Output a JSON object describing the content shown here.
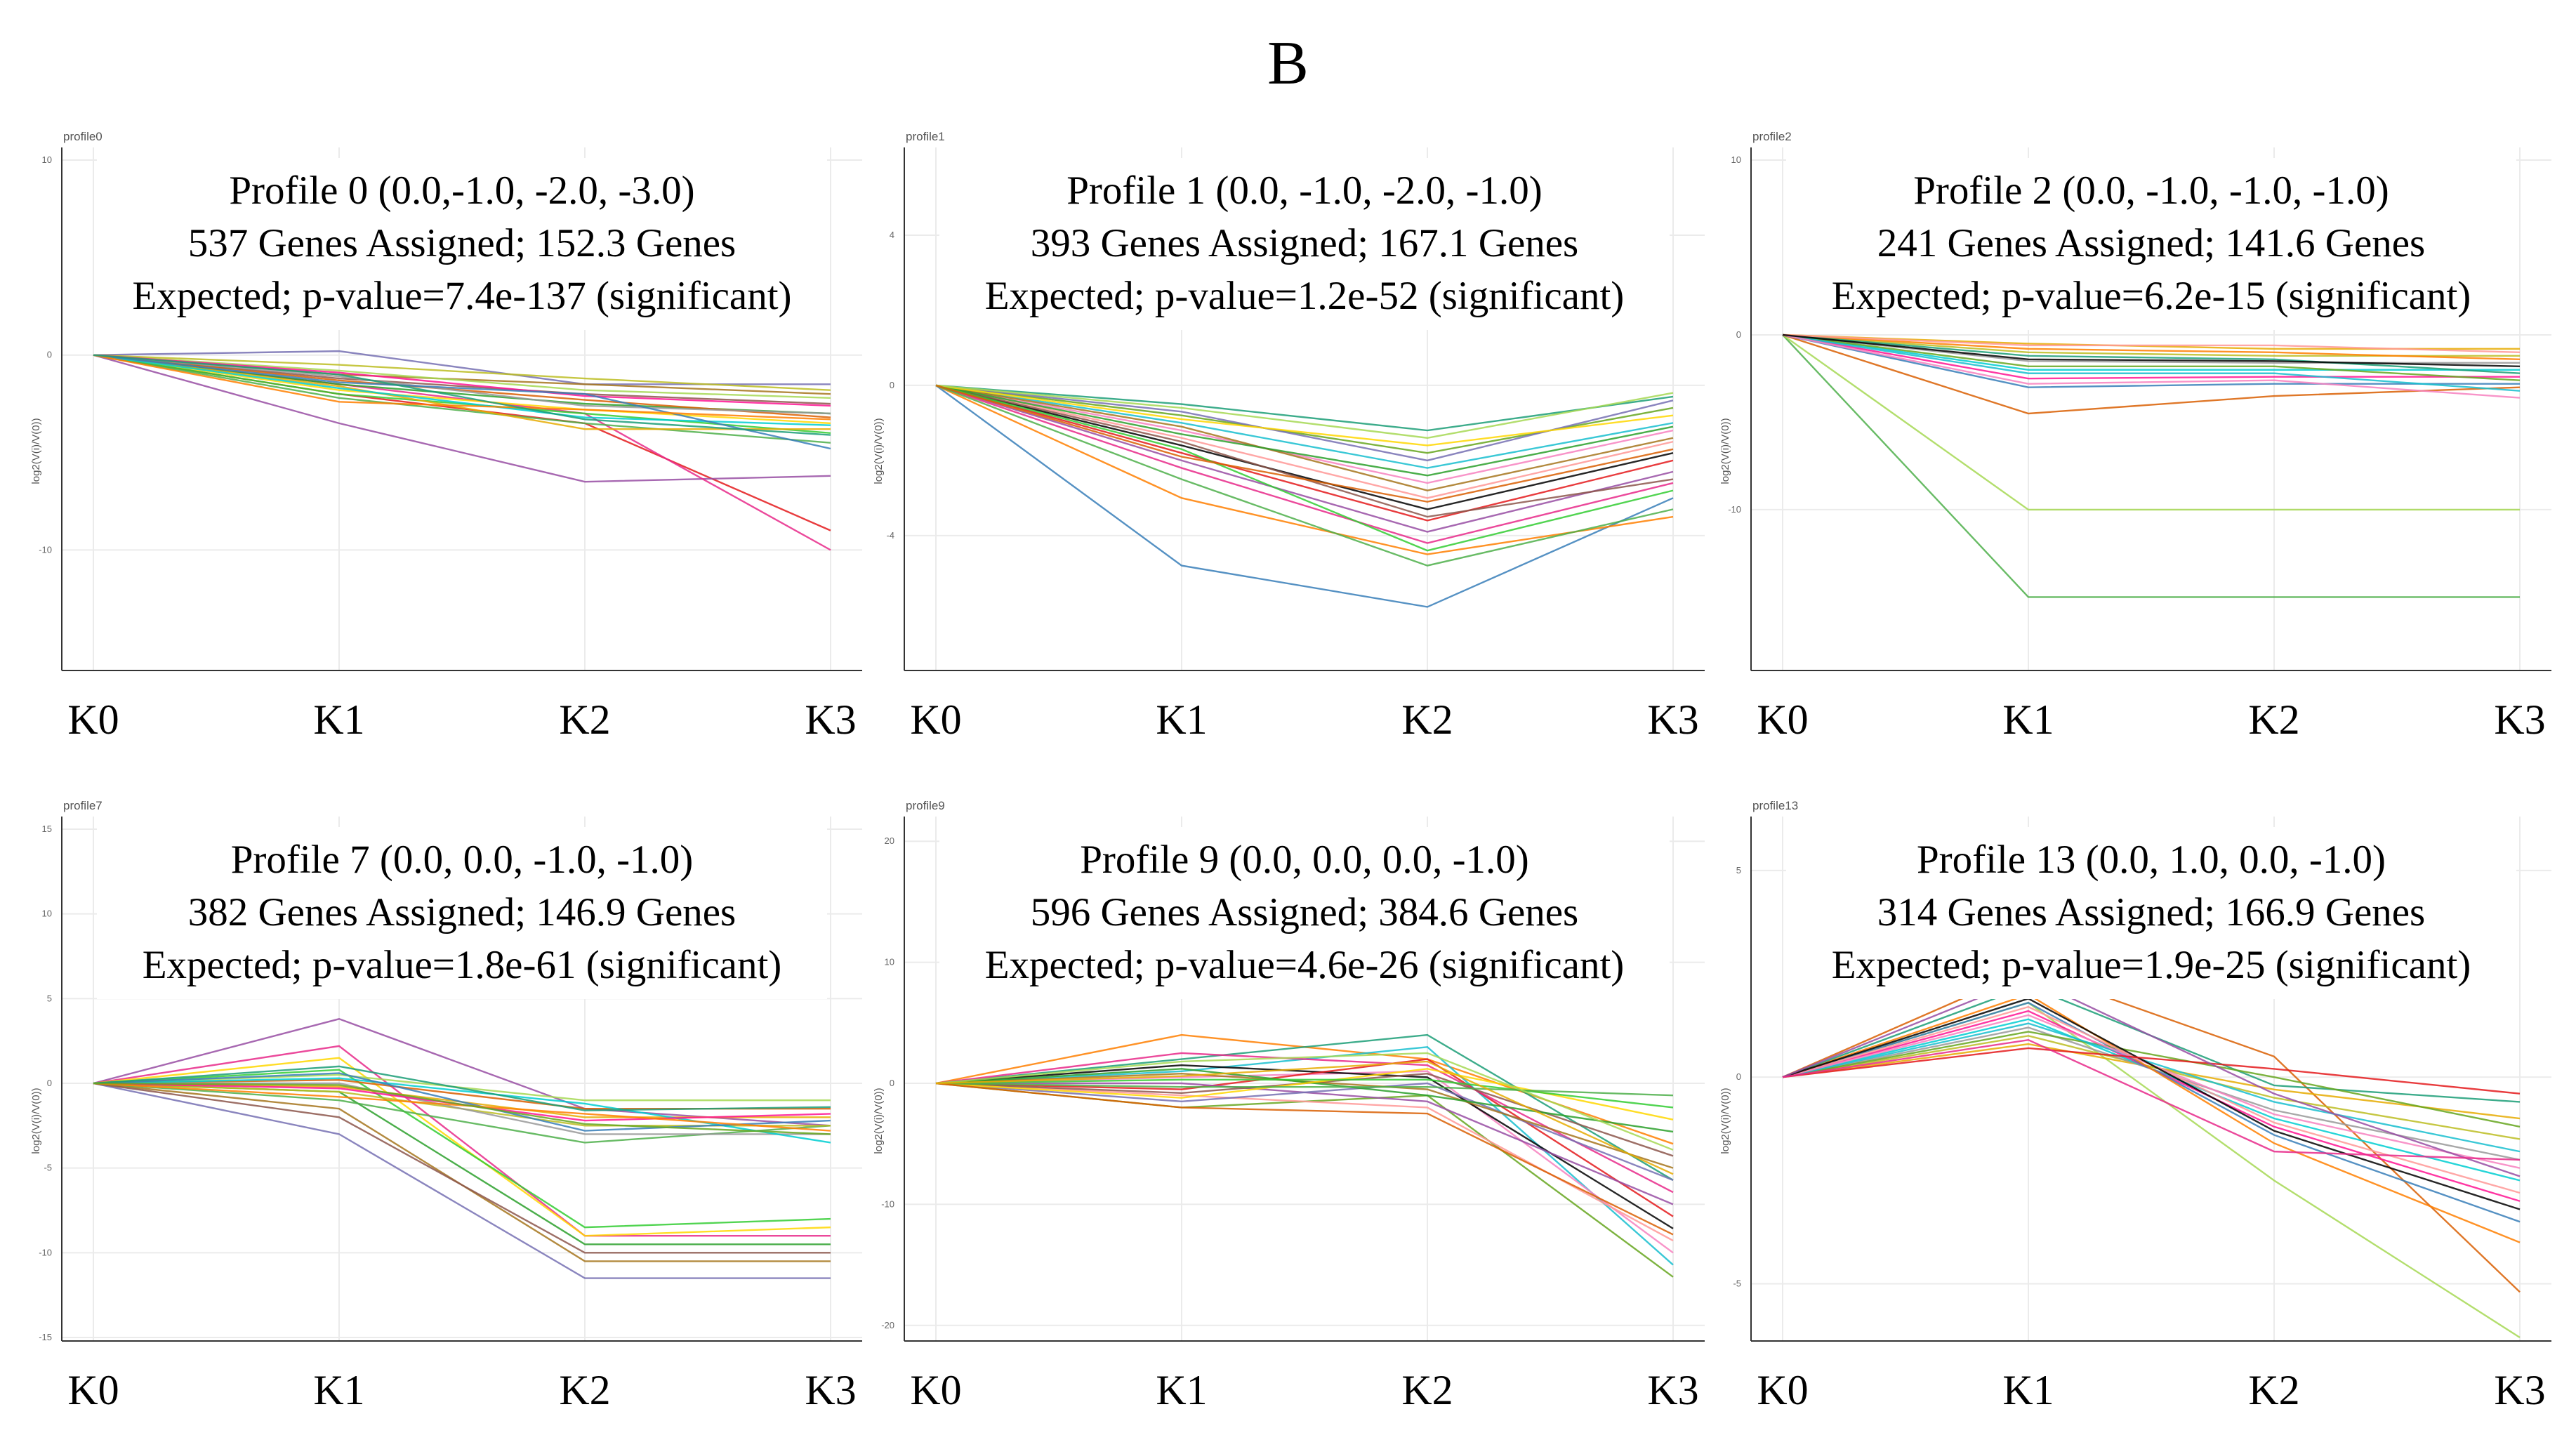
{
  "figure_label": "B",
  "colors": {
    "palette": [
      "#e41a1c",
      "#377eb8",
      "#4daf4a",
      "#984ea3",
      "#ff7f00",
      "#a6d854",
      "#e7298a",
      "#1b9e77",
      "#d95f02",
      "#7570b3",
      "#66a61e",
      "#e6ab02",
      "#a6761d",
      "#17becf",
      "#bcbd22",
      "#8c564b",
      "#f781bf",
      "#999999",
      "#2ca02c",
      "#ff9896",
      "#00ced1",
      "#ffd700",
      "#000000",
      "#ff1493",
      "#32cd32"
    ],
    "gridline": "#ebebeb",
    "axis": "#333333"
  },
  "chart_data": [
    {
      "type": "line",
      "tag": "profile0",
      "caption": [
        "Profile 0 (0.0,-1.0, -2.0, -3.0)",
        "537 Genes Assigned; 152.3 Genes",
        "Expected; p-value=7.4e-137 (significant)"
      ],
      "ylabel": "log2(V(i)/V(0))",
      "categories": [
        "K0",
        "K1",
        "K2",
        "K3"
      ],
      "profile": [
        0,
        -1,
        -2,
        -3
      ],
      "ylim": [
        -16,
        10
      ],
      "yticks": [
        10,
        0,
        -10
      ],
      "series": [
        {
          "values": [
            0,
            -2.0,
            -3.5,
            -9.0
          ]
        },
        {
          "values": [
            0,
            -3.5,
            -6.5,
            -6.2
          ]
        },
        {
          "values": [
            0,
            -1.5,
            -3.0,
            -10.0
          ]
        },
        {
          "values": [
            0,
            0.2,
            -1.5,
            -1.5
          ]
        },
        {
          "values": [
            0,
            -1.0,
            -1.5,
            -2.0
          ]
        },
        {
          "values": [
            0,
            -1.2,
            -2.0,
            -2.5
          ]
        },
        {
          "values": [
            0,
            -1.5,
            -2.5,
            -3.0
          ]
        },
        {
          "values": [
            0,
            -1.8,
            -2.8,
            -3.5
          ]
        },
        {
          "values": [
            0,
            -2.0,
            -3.0,
            -4.0
          ]
        },
        {
          "values": [
            0,
            -2.2,
            -3.5,
            -4.5
          ]
        },
        {
          "values": [
            0,
            -0.8,
            -1.8,
            -2.2
          ]
        },
        {
          "values": [
            0,
            -1.3,
            -2.3,
            -3.2
          ]
        },
        {
          "values": [
            0,
            -1.6,
            -3.8,
            -3.8
          ]
        },
        {
          "values": [
            0,
            -0.5,
            -1.2,
            -1.8
          ]
        },
        {
          "values": [
            0,
            -1.1,
            -2.6,
            -3.0
          ]
        },
        {
          "values": [
            0,
            -1.7,
            -3.2,
            -3.6
          ]
        },
        {
          "values": [
            0,
            -0.9,
            -2.1,
            -2.6
          ]
        },
        {
          "values": [
            0,
            -1.4,
            -2.0,
            -4.8
          ]
        },
        {
          "values": [
            0,
            -2.4,
            -2.8,
            -3.3
          ]
        },
        {
          "values": [
            0,
            -1.0,
            -3.3,
            -4.1
          ]
        }
      ]
    },
    {
      "type": "line",
      "tag": "profile1",
      "caption": [
        "Profile 1 (0.0, -1.0, -2.0, -1.0)",
        "393 Genes Assigned; 167.1 Genes",
        "Expected; p-value=1.2e-52 (significant)"
      ],
      "ylabel": "log2(V(i)/V(0))",
      "categories": [
        "K0",
        "K1",
        "K2",
        "K3"
      ],
      "profile": [
        0,
        -1,
        -2,
        -1
      ],
      "ylim": [
        -7.5,
        6
      ],
      "yticks": [
        4,
        0,
        -4
      ],
      "series": [
        {
          "values": [
            0,
            -4.8,
            -5.9,
            -3.0
          ]
        },
        {
          "values": [
            0,
            -3.0,
            -4.5,
            -3.5
          ]
        },
        {
          "values": [
            0,
            -0.5,
            -1.2,
            -0.3
          ]
        },
        {
          "values": [
            0,
            -0.8,
            -1.8,
            -0.6
          ]
        },
        {
          "values": [
            0,
            -1.0,
            -2.2,
            -1.0
          ]
        },
        {
          "values": [
            0,
            -1.2,
            -2.6,
            -1.2
          ]
        },
        {
          "values": [
            0,
            -1.4,
            -3.0,
            -1.5
          ]
        },
        {
          "values": [
            0,
            -1.6,
            -3.3,
            -1.8
          ]
        },
        {
          "values": [
            0,
            -1.8,
            -3.6,
            -2.0
          ]
        },
        {
          "values": [
            0,
            -2.0,
            -3.9,
            -2.3
          ]
        },
        {
          "values": [
            0,
            -2.2,
            -4.2,
            -2.6
          ]
        },
        {
          "values": [
            0,
            -0.7,
            -2.0,
            -0.4
          ]
        },
        {
          "values": [
            0,
            -1.1,
            -2.8,
            -1.4
          ]
        },
        {
          "values": [
            0,
            -1.5,
            -3.5,
            -2.5
          ]
        },
        {
          "values": [
            0,
            -1.3,
            -2.4,
            -1.1
          ]
        },
        {
          "values": [
            0,
            -0.9,
            -1.6,
            -0.8
          ]
        },
        {
          "values": [
            0,
            -1.7,
            -4.4,
            -2.8
          ]
        },
        {
          "values": [
            0,
            -2.5,
            -4.8,
            -3.3
          ]
        },
        {
          "values": [
            0,
            -0.6,
            -1.4,
            -0.2
          ]
        },
        {
          "values": [
            0,
            -1.9,
            -3.1,
            -1.7
          ]
        }
      ]
    },
    {
      "type": "line",
      "tag": "profile2",
      "caption": [
        "Profile 2 (0.0, -1.0, -1.0, -1.0)",
        "241 Genes Assigned; 141.6 Genes",
        "Expected; p-value=6.2e-15 (significant)"
      ],
      "ylabel": "log2(V(i)/V(0))",
      "categories": [
        "K0",
        "K1",
        "K2",
        "K3"
      ],
      "profile": [
        0,
        -1,
        -1,
        -1
      ],
      "ylim": [
        -19,
        10
      ],
      "yticks": [
        10,
        0,
        -10
      ],
      "series": [
        {
          "values": [
            0,
            -15.0,
            -15.0,
            -15.0
          ]
        },
        {
          "values": [
            0,
            -10.0,
            -10.0,
            -10.0
          ]
        },
        {
          "values": [
            0,
            -4.5,
            -3.5,
            -3.0
          ]
        },
        {
          "values": [
            0,
            -0.5,
            -0.8,
            -0.8
          ]
        },
        {
          "values": [
            0,
            -1.0,
            -1.2,
            -1.2
          ]
        },
        {
          "values": [
            0,
            -1.5,
            -1.6,
            -1.6
          ]
        },
        {
          "values": [
            0,
            -2.0,
            -2.0,
            -2.0
          ]
        },
        {
          "values": [
            0,
            -2.5,
            -2.4,
            -2.4
          ]
        },
        {
          "values": [
            0,
            -3.0,
            -2.8,
            -2.8
          ]
        },
        {
          "values": [
            0,
            -0.8,
            -1.0,
            -1.4
          ]
        },
        {
          "values": [
            0,
            -1.2,
            -1.4,
            -2.2
          ]
        },
        {
          "values": [
            0,
            -1.8,
            -1.8,
            -2.6
          ]
        },
        {
          "values": [
            0,
            -2.2,
            -2.2,
            -3.2
          ]
        },
        {
          "values": [
            0,
            -2.8,
            -2.6,
            -3.6
          ]
        },
        {
          "values": [
            0,
            -0.6,
            -0.6,
            -1.0
          ]
        },
        {
          "values": [
            0,
            -1.4,
            -1.5,
            -1.8
          ]
        }
      ]
    },
    {
      "type": "line",
      "tag": "profile7",
      "caption": [
        "Profile 7 (0.0, 0.0, -1.0, -1.0)",
        "382 Genes Assigned; 146.9 Genes",
        "Expected; p-value=1.8e-61 (significant)"
      ],
      "ylabel": "log2(V(i)/V(0))",
      "categories": [
        "K0",
        "K1",
        "K2",
        "K3"
      ],
      "profile": [
        0,
        0,
        -1,
        -1
      ],
      "ylim": [
        -15,
        15
      ],
      "yticks": [
        15,
        10,
        5,
        0,
        -5,
        -10,
        -15
      ],
      "series": [
        {
          "values": [
            0,
            3.8,
            -1.5,
            -2.5
          ]
        },
        {
          "values": [
            0,
            2.2,
            -9.0,
            -9.0
          ]
        },
        {
          "values": [
            0,
            -3.0,
            -11.5,
            -11.5
          ]
        },
        {
          "values": [
            0,
            -1.5,
            -10.5,
            -10.5
          ]
        },
        {
          "values": [
            0,
            -2.0,
            -10.0,
            -10.0
          ]
        },
        {
          "values": [
            0,
            -0.5,
            -9.5,
            -9.5
          ]
        },
        {
          "values": [
            0,
            1.5,
            -9.0,
            -8.5
          ]
        },
        {
          "values": [
            0,
            0.8,
            -8.5,
            -8.0
          ]
        },
        {
          "values": [
            0,
            -1.0,
            -3.5,
            -2.5
          ]
        },
        {
          "values": [
            0,
            0.5,
            -1.0,
            -1.0
          ]
        },
        {
          "values": [
            0,
            0.2,
            -1.5,
            -1.5
          ]
        },
        {
          "values": [
            0,
            -0.2,
            -2.0,
            -2.0
          ]
        },
        {
          "values": [
            0,
            -0.5,
            -2.5,
            -2.5
          ]
        },
        {
          "values": [
            0,
            0.0,
            -3.0,
            -3.0
          ]
        },
        {
          "values": [
            0,
            0.3,
            -1.2,
            -3.5
          ]
        },
        {
          "values": [
            0,
            -0.3,
            -2.2,
            -1.8
          ]
        },
        {
          "values": [
            0,
            0.6,
            -2.8,
            -2.2
          ]
        },
        {
          "values": [
            0,
            -0.8,
            -1.8,
            -2.8
          ]
        },
        {
          "values": [
            0,
            1.0,
            -1.6,
            -1.4
          ]
        },
        {
          "values": [
            0,
            -0.1,
            -2.4,
            -3.0
          ]
        }
      ]
    },
    {
      "type": "line",
      "tag": "profile9",
      "caption": [
        "Profile 9 (0.0, 0.0, 0.0, -1.0)",
        "596 Genes Assigned; 384.6 Genes",
        "Expected; p-value=4.6e-26 (significant)"
      ],
      "ylabel": "log2(V(i)/V(0))",
      "categories": [
        "K0",
        "K1",
        "K2",
        "K3"
      ],
      "profile": [
        0,
        0,
        0,
        -1
      ],
      "ylim": [
        -21,
        21
      ],
      "yticks": [
        20,
        10,
        0,
        -10,
        -20
      ],
      "series": [
        {
          "values": [
            0,
            4.0,
            2.0,
            -5.0
          ]
        },
        {
          "values": [
            0,
            2.0,
            4.0,
            -8.0
          ]
        },
        {
          "values": [
            0,
            -2.0,
            -1.0,
            -16.0
          ]
        },
        {
          "values": [
            0,
            1.0,
            3.0,
            -15.0
          ]
        },
        {
          "values": [
            0,
            0.5,
            1.0,
            -14.0
          ]
        },
        {
          "values": [
            0,
            -1.0,
            -2.0,
            -13.0
          ]
        },
        {
          "values": [
            0,
            1.5,
            0.5,
            -12.0
          ]
        },
        {
          "values": [
            0,
            -0.5,
            2.0,
            -11.0
          ]
        },
        {
          "values": [
            0,
            0.0,
            -1.5,
            -10.0
          ]
        },
        {
          "values": [
            0,
            2.5,
            1.5,
            -9.0
          ]
        },
        {
          "values": [
            0,
            -1.5,
            0.0,
            -8.0
          ]
        },
        {
          "values": [
            0,
            0.8,
            -0.5,
            -7.0
          ]
        },
        {
          "values": [
            0,
            -0.8,
            0.8,
            -6.0
          ]
        },
        {
          "values": [
            0,
            1.2,
            -1.0,
            -4.0
          ]
        },
        {
          "values": [
            0,
            -1.2,
            1.2,
            -3.0
          ]
        },
        {
          "values": [
            0,
            0.3,
            0.3,
            -2.0
          ]
        },
        {
          "values": [
            0,
            -0.3,
            -0.3,
            -1.0
          ]
        },
        {
          "values": [
            0,
            1.8,
            2.5,
            -5.5
          ]
        },
        {
          "values": [
            0,
            -2.0,
            -2.5,
            -12.5
          ]
        },
        {
          "values": [
            0,
            0.6,
            1.8,
            -7.5
          ]
        }
      ]
    },
    {
      "type": "line",
      "tag": "profile13",
      "caption": [
        "Profile 13 (0.0, 1.0, 0.0, -1.0)",
        "314 Genes Assigned; 166.9 Genes",
        "Expected; p-value=1.9e-25 (significant)"
      ],
      "ylabel": "log2(V(i)/V(0))",
      "categories": [
        "K0",
        "K1",
        "K2",
        "K3"
      ],
      "profile": [
        0,
        1,
        0,
        -1
      ],
      "ylim": [
        -6.3,
        6
      ],
      "yticks": [
        5,
        0,
        -5
      ],
      "series": [
        {
          "values": [
            0,
            1.8,
            -2.5,
            -8.0
          ]
        },
        {
          "values": [
            0,
            2.6,
            0.5,
            -5.2
          ]
        },
        {
          "values": [
            0,
            0.8,
            -0.3,
            -1.0
          ]
        },
        {
          "values": [
            0,
            1.0,
            -0.5,
            -1.5
          ]
        },
        {
          "values": [
            0,
            1.2,
            -0.8,
            -2.0
          ]
        },
        {
          "values": [
            0,
            1.4,
            -1.0,
            -2.5
          ]
        },
        {
          "values": [
            0,
            1.6,
            -1.2,
            -3.0
          ]
        },
        {
          "values": [
            0,
            1.8,
            -1.4,
            -3.5
          ]
        },
        {
          "values": [
            0,
            2.0,
            -1.6,
            -4.0
          ]
        },
        {
          "values": [
            0,
            2.2,
            -0.2,
            -0.6
          ]
        },
        {
          "values": [
            0,
            1.1,
            0.0,
            -1.2
          ]
        },
        {
          "values": [
            0,
            1.3,
            -0.6,
            -1.8
          ]
        },
        {
          "values": [
            0,
            1.5,
            -0.9,
            -2.2
          ]
        },
        {
          "values": [
            0,
            1.7,
            -1.1,
            -2.8
          ]
        },
        {
          "values": [
            0,
            1.9,
            -1.3,
            -3.2
          ]
        },
        {
          "values": [
            0,
            0.7,
            0.2,
            -0.4
          ]
        },
        {
          "values": [
            0,
            2.4,
            -0.4,
            -2.4
          ]
        },
        {
          "values": [
            0,
            0.9,
            -1.8,
            -2.0
          ]
        }
      ]
    }
  ]
}
